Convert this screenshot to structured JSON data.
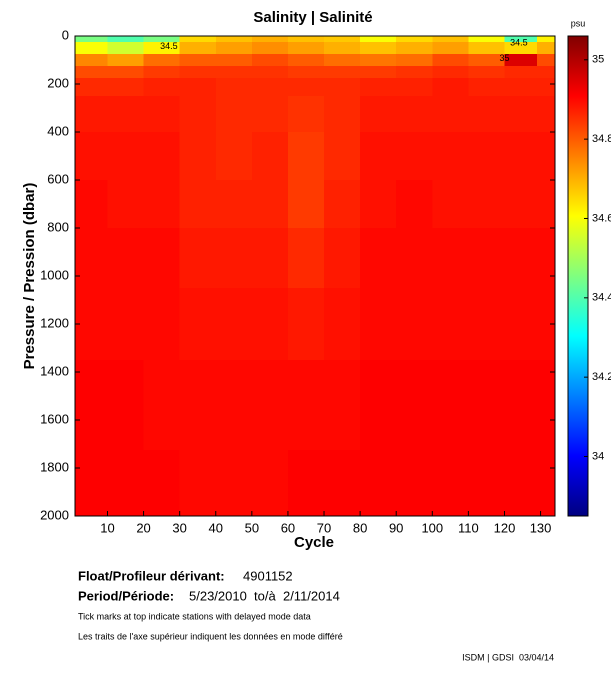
{
  "chart_data": {
    "type": "heatmap",
    "title": "Salinity | Salinité",
    "xlabel": "Cycle",
    "ylabel": "Pressure / Pression (dbar)",
    "x": [
      5,
      15,
      25,
      35,
      45,
      55,
      65,
      75,
      85,
      95,
      105,
      115,
      125,
      133
    ],
    "y": [
      0,
      50,
      100,
      150,
      200,
      300,
      500,
      700,
      900,
      1200,
      1500,
      1950
    ],
    "z": [
      [
        34.45,
        34.6,
        34.75,
        34.82,
        34.86,
        34.88,
        34.89,
        34.9,
        34.9,
        34.9,
        34.91,
        34.91
      ],
      [
        34.4,
        34.55,
        34.72,
        34.82,
        34.86,
        34.88,
        34.89,
        34.89,
        34.9,
        34.9,
        34.91,
        34.91
      ],
      [
        34.45,
        34.62,
        34.78,
        34.84,
        34.87,
        34.88,
        34.89,
        34.89,
        34.9,
        34.9,
        34.9,
        34.91
      ],
      [
        34.65,
        34.7,
        34.8,
        34.85,
        34.87,
        34.87,
        34.87,
        34.87,
        34.88,
        34.89,
        34.9,
        34.9
      ],
      [
        34.68,
        34.72,
        34.8,
        34.85,
        34.86,
        34.86,
        34.86,
        34.87,
        34.88,
        34.89,
        34.9,
        34.9
      ],
      [
        34.7,
        34.74,
        34.82,
        34.85,
        34.86,
        34.86,
        34.87,
        34.87,
        34.88,
        34.89,
        34.9,
        34.9
      ],
      [
        34.68,
        34.72,
        34.8,
        34.84,
        34.86,
        34.85,
        34.84,
        34.84,
        34.86,
        34.88,
        34.9,
        34.91
      ],
      [
        34.67,
        34.7,
        34.78,
        34.84,
        34.86,
        34.86,
        34.86,
        34.87,
        34.88,
        34.89,
        34.9,
        34.91
      ],
      [
        34.6,
        34.68,
        34.77,
        34.84,
        34.87,
        34.88,
        34.89,
        34.89,
        34.9,
        34.9,
        34.91,
        34.91
      ],
      [
        34.65,
        34.7,
        34.78,
        34.85,
        34.87,
        34.88,
        34.89,
        34.9,
        34.9,
        34.9,
        34.91,
        34.91
      ],
      [
        34.68,
        34.72,
        34.82,
        34.86,
        34.88,
        34.88,
        34.89,
        34.89,
        34.9,
        34.9,
        34.91,
        34.91
      ],
      [
        34.6,
        34.68,
        34.8,
        34.85,
        34.87,
        34.88,
        34.89,
        34.89,
        34.9,
        34.9,
        34.91,
        34.91
      ],
      [
        34.4,
        34.65,
        34.95,
        34.86,
        34.87,
        34.88,
        34.89,
        34.89,
        34.9,
        34.9,
        34.91,
        34.91
      ],
      [
        34.62,
        34.7,
        34.82,
        34.86,
        34.87,
        34.88,
        34.89,
        34.89,
        34.9,
        34.9,
        34.91,
        34.91
      ]
    ],
    "xlim": [
      1,
      134
    ],
    "ylim": [
      0,
      2000
    ],
    "xticks": [
      10,
      20,
      30,
      40,
      50,
      60,
      70,
      80,
      90,
      100,
      110,
      120,
      130
    ],
    "yticks": [
      0,
      200,
      400,
      600,
      800,
      1000,
      1200,
      1400,
      1600,
      1800,
      2000
    ],
    "y_inverted": true,
    "colorscale": [
      [
        0,
        "#000080"
      ],
      [
        0.125,
        "#0000ff"
      ],
      [
        0.375,
        "#00ffff"
      ],
      [
        0.625,
        "#ffff00"
      ],
      [
        0.875,
        "#ff0000"
      ],
      [
        1,
        "#800000"
      ]
    ],
    "clim": [
      33.85,
      35.06
    ],
    "cticks": [
      34,
      34.2,
      34.4,
      34.6,
      34.8,
      35
    ],
    "cunit": "psu",
    "annotations": [
      {
        "text": "34.5",
        "x": 27,
        "y": 45
      },
      {
        "text": "35",
        "x": 120,
        "y": 95
      },
      {
        "text": "34.5",
        "x": 124,
        "y": 30
      }
    ],
    "float_label": "Float/Profileur dérivant:",
    "float_id": "4901152",
    "period_label": "Period/Période:",
    "period": "5/23/2010  to/à  2/11/2014",
    "note_en": "Tick marks at top indicate stations with delayed mode data",
    "note_fr": "Les traits de l'axe supérieur indiquent les données en mode différé",
    "credit": "ISDM | GDSI  03/04/14"
  }
}
